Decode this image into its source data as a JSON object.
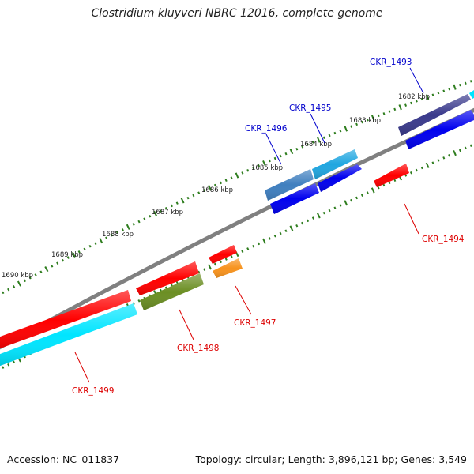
{
  "title": "Clostridium kluyveri NBRC 12016, complete genome",
  "footer": {
    "accession": "Accession: NC_011837",
    "summary": "Topology: circular; Length: 3,896,121 bp; Genes: 3,549"
  },
  "colors": {
    "backbone": "#808080",
    "ticks": "#2e7d1e",
    "forward_label": "#0000cc",
    "reverse_label": "#dd0000"
  },
  "ruler_labels": [
    "1682 kbp",
    "1683 kbp",
    "1684 kbp",
    "1685 kbp",
    "1686 kbp",
    "1687 kbp",
    "1688 kbp",
    "1689 kbp",
    "1690 kbp"
  ],
  "genes": {
    "forward": [
      {
        "label": "CKR_1493",
        "color": "#3a3a8c"
      },
      {
        "label": "CKR_1495",
        "color": "#1fa6e0"
      },
      {
        "label": "CKR_1496",
        "color": "#3f7fbf"
      }
    ],
    "reverse": [
      {
        "label": "CKR_1494",
        "color": "#ff0000"
      },
      {
        "label": "CKR_1497",
        "color": "#f7931e"
      },
      {
        "label": "CKR_1498",
        "color": "#6b8e23"
      },
      {
        "label": "CKR_1499",
        "color": "#00e5ff"
      }
    ]
  }
}
